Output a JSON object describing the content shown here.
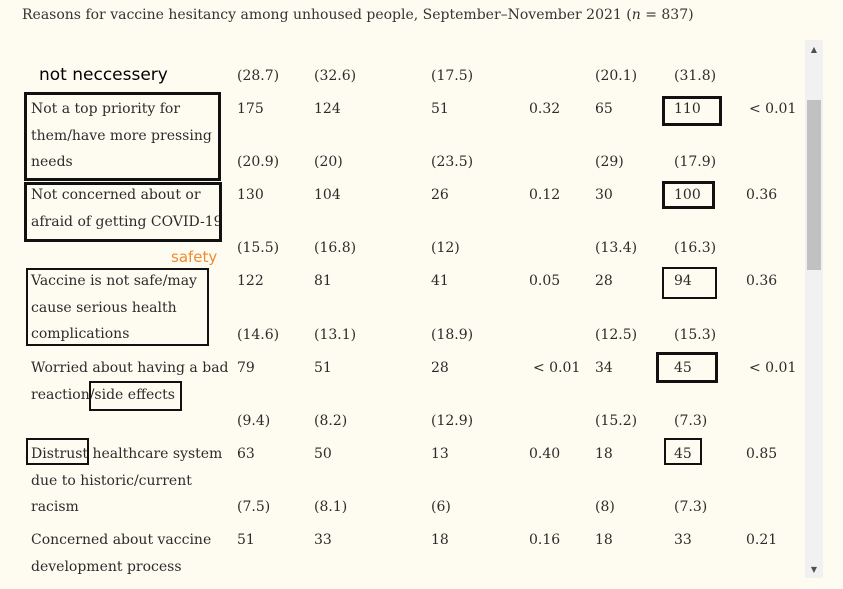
{
  "title": {
    "prefix": "Reasons for vaccine hesitancy among unhoused people, September–November 2021 (",
    "n_symbol": "n",
    "suffix": " = 837)"
  },
  "annotations": {
    "not_necessary": "not neccessery",
    "safety": "safety"
  },
  "rows": [
    {
      "pcts": [
        "(28.7)",
        "(32.6)",
        "(17.5)",
        "",
        "(20.1)",
        "(31.8)",
        ""
      ]
    },
    {
      "label": "Not a top priority for them/have more pressing needs",
      "vals": [
        "175",
        "124",
        "51",
        "0.32",
        "65",
        "110",
        "< 0.01"
      ],
      "pcts": [
        "(20.9)",
        "(20)",
        "(23.5)",
        "",
        "(29)",
        "(17.9)",
        ""
      ]
    },
    {
      "label": "Not concerned about or afraid of getting COVID-19",
      "vals": [
        "130",
        "104",
        "26",
        "0.12",
        "30",
        "100",
        "0.36"
      ],
      "pcts": [
        "(15.5)",
        "(16.8)",
        "(12)",
        "",
        "(13.4)",
        "(16.3)",
        ""
      ]
    },
    {
      "label": "Vaccine is not safe/may cause serious health complications",
      "vals": [
        "122",
        "81",
        "41",
        "0.05",
        "28",
        "94",
        "0.36"
      ],
      "pcts": [
        "(14.6)",
        "(13.1)",
        "(18.9)",
        "",
        "(12.5)",
        "(15.3)",
        ""
      ]
    },
    {
      "label": "Worried about having a bad reaction/side effects",
      "vals": [
        "79",
        "51",
        "28",
        "< 0.01",
        "34",
        "45",
        "< 0.01"
      ],
      "pcts": [
        "(9.4)",
        "(8.2)",
        "(12.9)",
        "",
        "(15.2)",
        "(7.3)",
        ""
      ]
    },
    {
      "label": "Distrust healthcare system due to historic/current racism",
      "vals": [
        "63",
        "50",
        "13",
        "0.40",
        "18",
        "45",
        "0.85"
      ],
      "pcts": [
        "(7.5)",
        "(8.1)",
        "(6)",
        "",
        "(8)",
        "(7.3)",
        ""
      ]
    },
    {
      "label": "Concerned about vaccine development process",
      "vals": [
        "51",
        "33",
        "18",
        "0.16",
        "18",
        "33",
        "0.21"
      ]
    }
  ],
  "icons": {
    "scroll_up": "scroll-up-arrow-icon",
    "scroll_down": "scroll-down-arrow-icon"
  }
}
